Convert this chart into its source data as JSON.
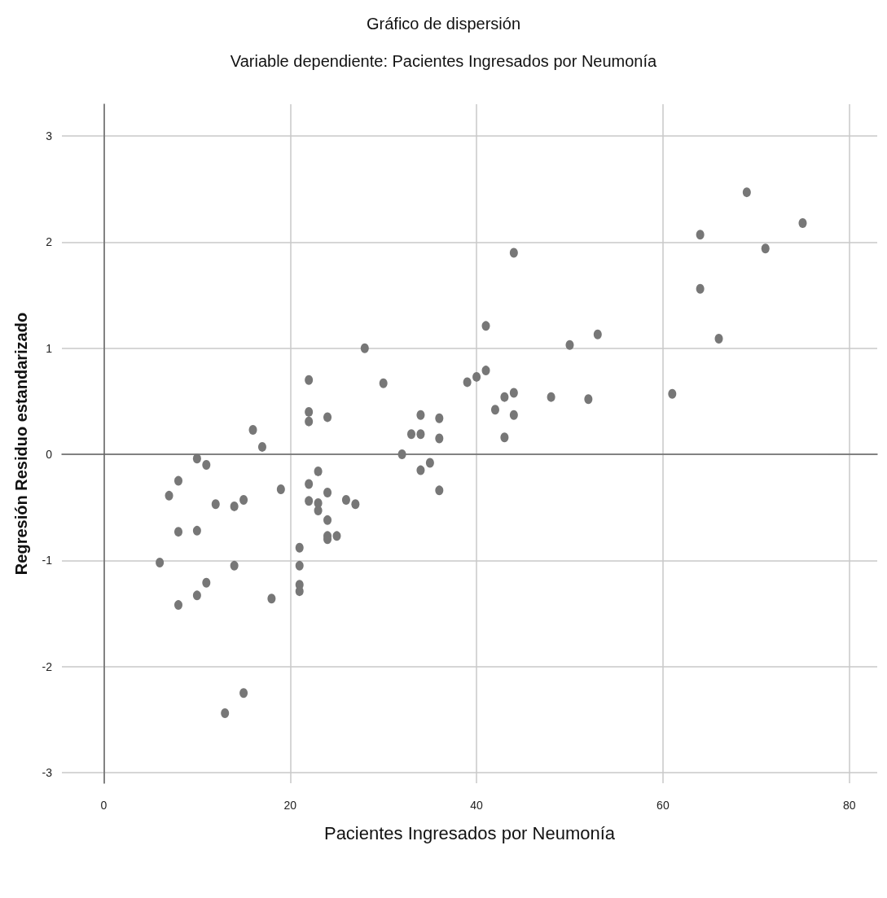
{
  "chart_data": {
    "type": "scatter",
    "title": "Gráfico de dispersión",
    "subtitle": "Variable dependiente: Pacientes Ingresados por Neumonía",
    "xlabel": "Pacientes Ingresados por Neumonía",
    "ylabel": "Regresión Residuo estandarizado",
    "xlim": [
      -4.5,
      83
    ],
    "ylim": [
      -3.1,
      3.3
    ],
    "xticks": [
      0,
      20,
      40,
      60,
      80
    ],
    "yticks": [
      -3,
      -2,
      -1,
      0,
      1,
      2,
      3
    ],
    "grid": true,
    "marker": "circle",
    "series": [
      {
        "color": "#777777",
        "x": [
          6,
          7,
          8,
          8,
          8,
          10,
          10,
          10,
          11,
          11,
          12,
          13,
          14,
          14,
          15,
          15,
          16,
          17,
          18,
          19,
          21,
          21,
          21,
          21,
          22,
          22,
          22,
          22,
          22,
          23,
          23,
          23,
          24,
          24,
          24,
          24,
          24,
          25,
          26,
          27,
          28,
          30,
          32,
          33,
          34,
          34,
          34,
          35,
          36,
          36,
          36,
          39,
          40,
          41,
          41,
          42,
          43,
          43,
          44,
          44,
          44,
          48,
          50,
          52,
          53,
          61,
          64,
          64,
          66,
          69,
          71,
          75
        ],
        "values": [
          -1.02,
          -0.39,
          -0.25,
          -0.73,
          -1.42,
          -0.04,
          -0.72,
          -1.33,
          -0.1,
          -1.21,
          -0.47,
          -2.44,
          -0.49,
          -1.05,
          -0.43,
          -2.25,
          0.23,
          0.07,
          -1.36,
          -0.33,
          -0.88,
          -1.05,
          -1.23,
          -1.29,
          0.7,
          0.4,
          0.31,
          -0.28,
          -0.44,
          -0.16,
          -0.46,
          -0.53,
          0.35,
          -0.36,
          -0.62,
          -0.77,
          -0.8,
          -0.77,
          -0.43,
          -0.47,
          1.0,
          0.67,
          0.0,
          0.19,
          0.37,
          0.19,
          -0.15,
          -0.08,
          0.34,
          0.15,
          -0.34,
          0.68,
          0.73,
          1.21,
          0.79,
          0.42,
          0.54,
          0.16,
          1.9,
          0.58,
          0.37,
          0.54,
          1.03,
          0.52,
          1.13,
          0.57,
          2.07,
          1.56,
          1.09,
          2.47,
          1.94,
          2.18
        ]
      }
    ]
  }
}
